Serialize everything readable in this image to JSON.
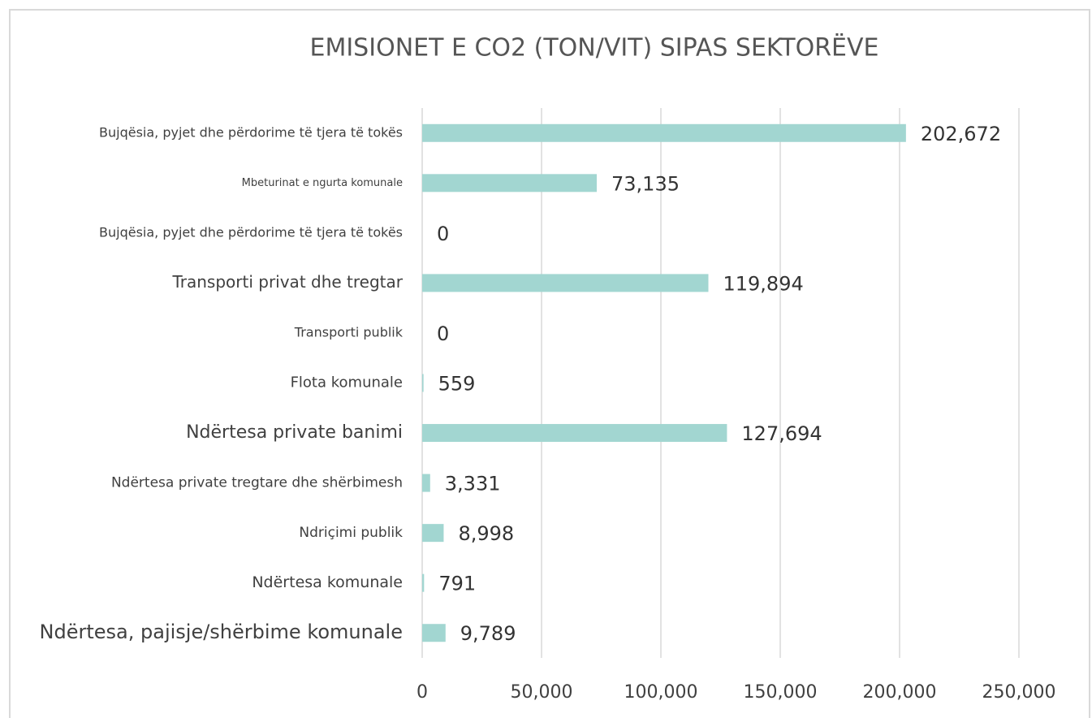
{
  "chart_data": {
    "type": "hbar",
    "title": "EMISIONET E CO2 (TON/VIT) SIPAS SEKTORËVE",
    "categories": [
      "Bujqësia, pyjet dhe përdorime të tjera të tokës",
      "Mbeturinat e ngurta komunale",
      "Bujqësia, pyjet dhe përdorime të tjera të tokës",
      "Transporti privat dhe tregtar",
      "Transporti publik",
      "Flota komunale",
      "Ndërtesa private banimi",
      "Ndërtesa private tregtare dhe shërbimesh",
      "Ndriçimi publik",
      "Ndërtesa komunale",
      "Ndërtesa, pajisje/shërbime komunale"
    ],
    "values": [
      202672,
      73135,
      0,
      119894,
      0,
      559,
      127694,
      3331,
      8998,
      791,
      9789
    ],
    "value_labels": [
      "202,672",
      "73,135",
      "0",
      "119,894",
      "0",
      "559",
      "127,694",
      "3,331",
      "8,998",
      "791",
      "9,789"
    ],
    "color": "#a2d6d1",
    "xlim": [
      0,
      250000
    ],
    "xticks": [
      0,
      {
        "value": 50000,
        "label": "50,000"
      },
      {
        "value": 100000,
        "label": "100,000"
      },
      {
        "value": 150000,
        "label": "150,000"
      },
      {
        "value": 200000,
        "label": "200,000"
      },
      {
        "value": 250000,
        "label": "250,000"
      }
    ],
    "grid": true
  }
}
